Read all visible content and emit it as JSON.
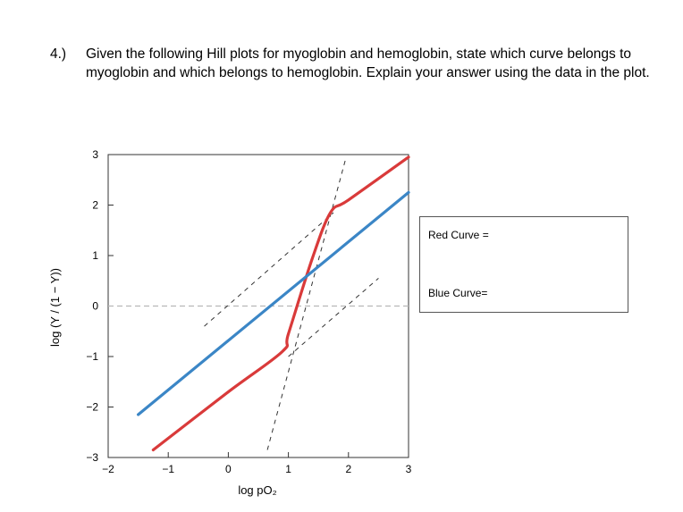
{
  "question": {
    "number": "4.)",
    "text": "Given the following Hill plots for myoglobin and hemoglobin, state which curve belongs to myoglobin and which belongs to hemoglobin. Explain your answer using the data in the plot."
  },
  "answer_box": {
    "red_label": "Red Curve =",
    "blue_label": "Blue Curve="
  },
  "chart_data": {
    "type": "line",
    "title": "",
    "xlabel": "log pO₂",
    "ylabel": "log (Y / (1 − Y))",
    "xlim": [
      -2,
      3
    ],
    "ylim": [
      -3,
      3
    ],
    "xticks": [
      "−2",
      "−1",
      "0",
      "1",
      "2",
      "3"
    ],
    "yticks": [
      "3",
      "2",
      "1",
      "0",
      "−1",
      "−2",
      "−3"
    ],
    "grid": false,
    "colors": {
      "red": "#d93a3a",
      "blue": "#3b86c6"
    },
    "series": [
      {
        "color": "red",
        "x": [
          -1.25,
          0,
          0.9,
          1.0,
          1.4,
          1.7,
          2.0,
          3.0
        ],
        "y": [
          -2.85,
          -1.7,
          -0.9,
          -0.55,
          0.95,
          1.85,
          2.1,
          2.95
        ]
      },
      {
        "color": "blue",
        "x": [
          -1.5,
          3.0
        ],
        "y": [
          -2.15,
          2.25
        ]
      }
    ],
    "reference_lines": [
      {
        "style": "dashed",
        "color": "gray",
        "x": [
          -2,
          3
        ],
        "y": [
          0,
          0
        ]
      },
      {
        "style": "dashed",
        "color": "black",
        "x": [
          -0.4,
          1.75
        ],
        "y": [
          -0.4,
          1.85
        ]
      },
      {
        "style": "dashed",
        "color": "black",
        "x": [
          1.0,
          2.5
        ],
        "y": [
          -1.0,
          0.55
        ]
      },
      {
        "style": "dashed",
        "color": "black",
        "x": [
          0.65,
          1.95
        ],
        "y": [
          -2.85,
          2.9
        ]
      }
    ]
  }
}
